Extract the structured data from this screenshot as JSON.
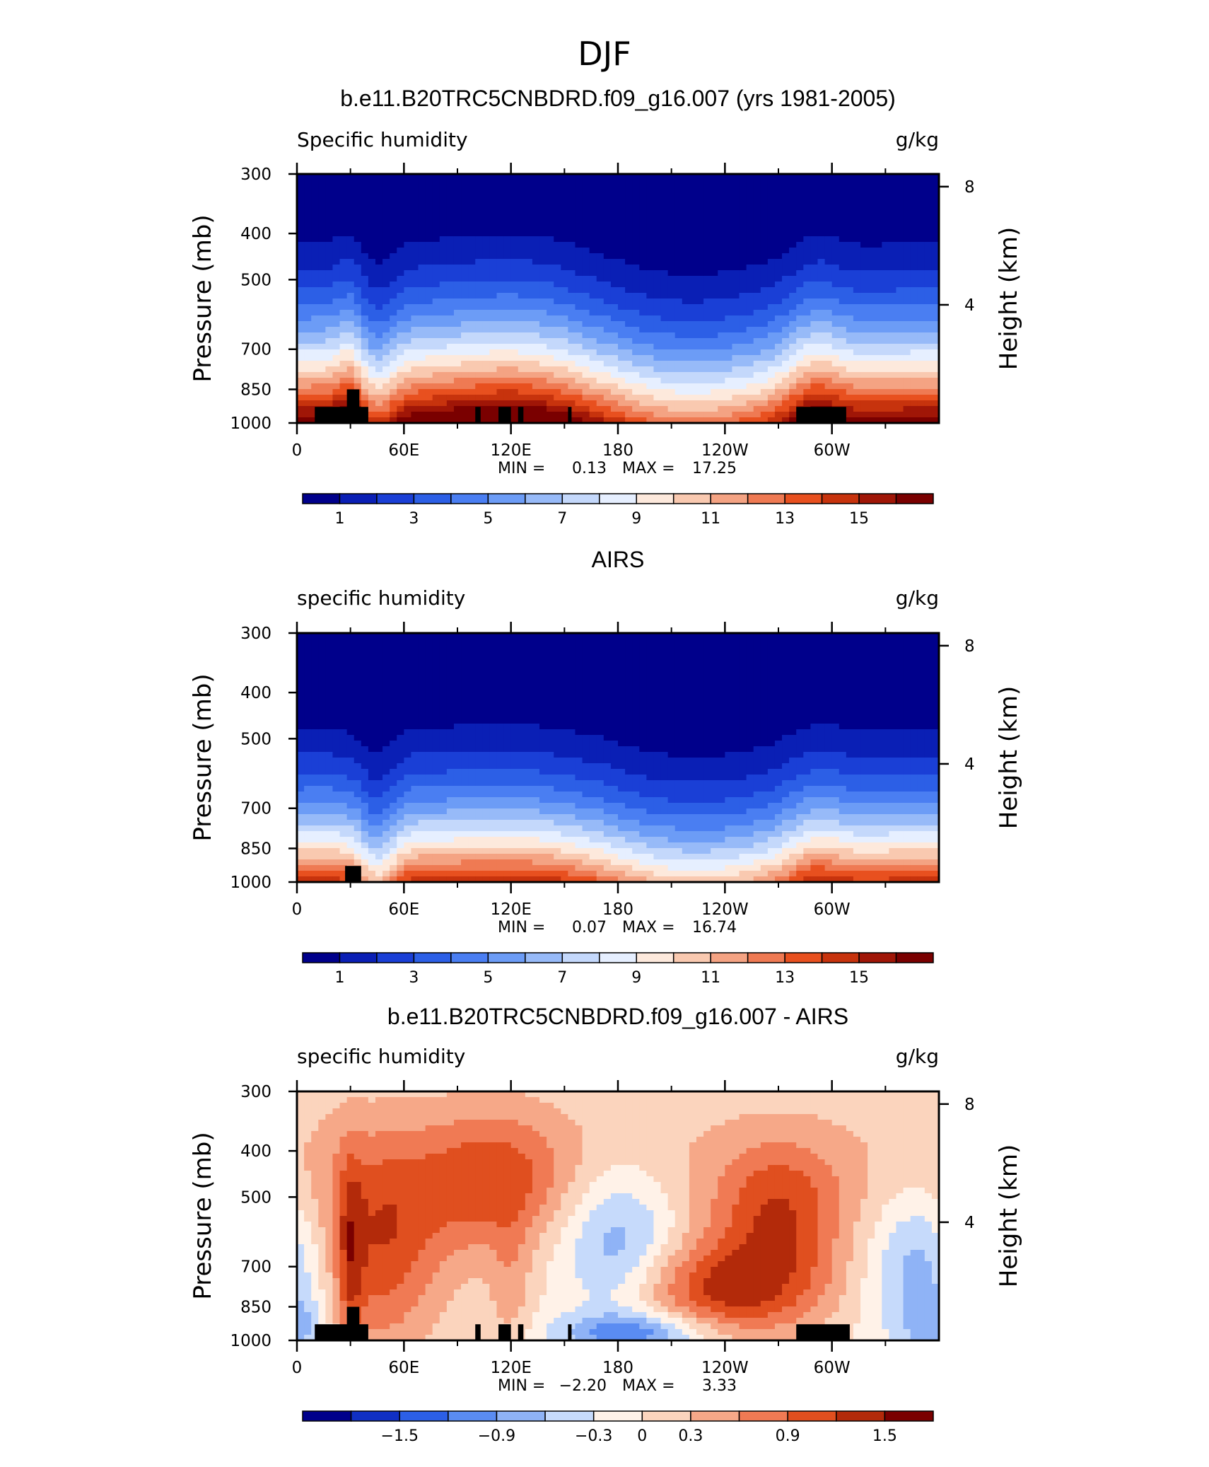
{
  "figure_title": "DJF",
  "colors": {
    "abs_scale": [
      "#00008b",
      "#0a1fb5",
      "#1a3fd6",
      "#2c5fe6",
      "#4a7ef2",
      "#6c9cf6",
      "#97baf8",
      "#c4d8fb",
      "#e6efff",
      "#fde9dc",
      "#f9c9b0",
      "#f4a383",
      "#ef7a53",
      "#e8501f",
      "#c7330d",
      "#a01607",
      "#7a0000"
    ],
    "diff_scale": [
      "#00008b",
      "#1030c4",
      "#2c5fe6",
      "#5a8cf2",
      "#8fb3f6",
      "#c6dafb",
      "#fff2e8",
      "#fbd4bd",
      "#f6a888",
      "#f07a54",
      "#e04f1f",
      "#b32a0a",
      "#7a0000"
    ],
    "land": "#000000"
  },
  "chart_data": [
    {
      "type": "heatmap",
      "title": "b.e11.B20TRC5CNBDRD.f09_g16.007 (yrs 1981-2005)",
      "left_label": "Specific humidity",
      "right_label": "g/kg",
      "ylabel": "Pressure (mb)",
      "ylabel_right": "Height (km)",
      "x_ticks": [
        "0",
        "60E",
        "120E",
        "180",
        "120W",
        "60W"
      ],
      "x_tick_values": [
        0,
        60,
        120,
        180,
        240,
        300
      ],
      "xlim": [
        0,
        360
      ],
      "y_ticks": [
        "300",
        "400",
        "500",
        "700",
        "850",
        "1000"
      ],
      "y_tick_values": [
        300,
        400,
        500,
        700,
        850,
        1000
      ],
      "ylim": [
        1000,
        300
      ],
      "height_ticks": [
        "8",
        "4"
      ],
      "height_tick_values": [
        8,
        4
      ],
      "stats": {
        "min_label": "MIN =",
        "min": "0.13",
        "max_label": "MAX =",
        "max": "17.25"
      },
      "colorbar": {
        "levels": [
          0.13,
          1,
          2,
          3,
          4,
          5,
          6,
          7,
          8,
          9,
          10,
          11,
          12,
          13,
          14,
          15,
          16,
          17.25
        ],
        "labels": [
          "1",
          "3",
          "5",
          "7",
          "9",
          "11",
          "13",
          "15"
        ],
        "label_values": [
          1,
          3,
          5,
          7,
          9,
          11,
          13,
          15
        ]
      },
      "field": "model",
      "value_range": [
        0.13,
        17.25
      ],
      "mask": [
        [
          10,
          40,
          925
        ],
        [
          28,
          35,
          850
        ],
        [
          100,
          103,
          925
        ],
        [
          113,
          120,
          925
        ],
        [
          124,
          127,
          925
        ],
        [
          152,
          154,
          925
        ],
        [
          280,
          308,
          925
        ]
      ]
    },
    {
      "type": "heatmap",
      "title": "AIRS",
      "left_label": "specific humidity",
      "right_label": "g/kg",
      "ylabel": "Pressure (mb)",
      "ylabel_right": "Height (km)",
      "x_ticks": [
        "0",
        "60E",
        "120E",
        "180",
        "120W",
        "60W"
      ],
      "x_tick_values": [
        0,
        60,
        120,
        180,
        240,
        300
      ],
      "xlim": [
        0,
        360
      ],
      "y_ticks": [
        "300",
        "400",
        "500",
        "700",
        "850",
        "1000"
      ],
      "y_tick_values": [
        300,
        400,
        500,
        700,
        850,
        1000
      ],
      "ylim": [
        1000,
        300
      ],
      "height_ticks": [
        "8",
        "4"
      ],
      "height_tick_values": [
        8,
        4
      ],
      "stats": {
        "min_label": "MIN =",
        "min": "0.07",
        "max_label": "MAX =",
        "max": "16.74"
      },
      "colorbar": {
        "levels": [
          0.07,
          1,
          2,
          3,
          4,
          5,
          6,
          7,
          8,
          9,
          10,
          11,
          12,
          13,
          14,
          15,
          16,
          16.74
        ],
        "labels": [
          "1",
          "3",
          "5",
          "7",
          "9",
          "11",
          "13",
          "15"
        ],
        "label_values": [
          1,
          3,
          5,
          7,
          9,
          11,
          13,
          15
        ]
      },
      "field": "obs",
      "value_range": [
        0.07,
        16.74
      ],
      "mask": [
        [
          27,
          36,
          925
        ]
      ]
    },
    {
      "type": "heatmap",
      "title": "b.e11.B20TRC5CNBDRD.f09_g16.007 - AIRS",
      "left_label": "specific humidity",
      "right_label": "g/kg",
      "ylabel": "Pressure (mb)",
      "ylabel_right": "Height (km)",
      "x_ticks": [
        "0",
        "60E",
        "120E",
        "180",
        "120W",
        "60W"
      ],
      "x_tick_values": [
        0,
        60,
        120,
        180,
        240,
        300
      ],
      "xlim": [
        0,
        360
      ],
      "y_ticks": [
        "300",
        "400",
        "500",
        "700",
        "850",
        "1000"
      ],
      "y_tick_values": [
        300,
        400,
        500,
        700,
        850,
        1000
      ],
      "ylim": [
        1000,
        300
      ],
      "height_ticks": [
        "8",
        "4"
      ],
      "height_tick_values": [
        8,
        4
      ],
      "stats": {
        "min_label": "MIN =",
        "min": "−2.20",
        "max_label": "MAX =",
        "max": "3.33"
      },
      "colorbar": {
        "levels": [
          -2.2,
          -1.8,
          -1.5,
          -1.2,
          -0.9,
          -0.6,
          -0.3,
          0,
          0.3,
          0.6,
          0.9,
          1.2,
          1.5,
          3.33
        ],
        "labels": [
          "−1.5",
          "−0.9",
          "−0.3",
          "0",
          "0.3",
          "0.9",
          "1.5"
        ],
        "label_values": [
          -1.5,
          -0.9,
          -0.3,
          0,
          0.3,
          0.9,
          1.5
        ]
      },
      "field": "diff",
      "value_range": [
        -2.2,
        3.33
      ],
      "mask": [
        [
          10,
          40,
          925
        ],
        [
          28,
          35,
          850
        ],
        [
          100,
          103,
          925
        ],
        [
          113,
          120,
          925
        ],
        [
          124,
          127,
          925
        ],
        [
          152,
          154,
          925
        ],
        [
          280,
          310,
          925
        ]
      ]
    }
  ]
}
